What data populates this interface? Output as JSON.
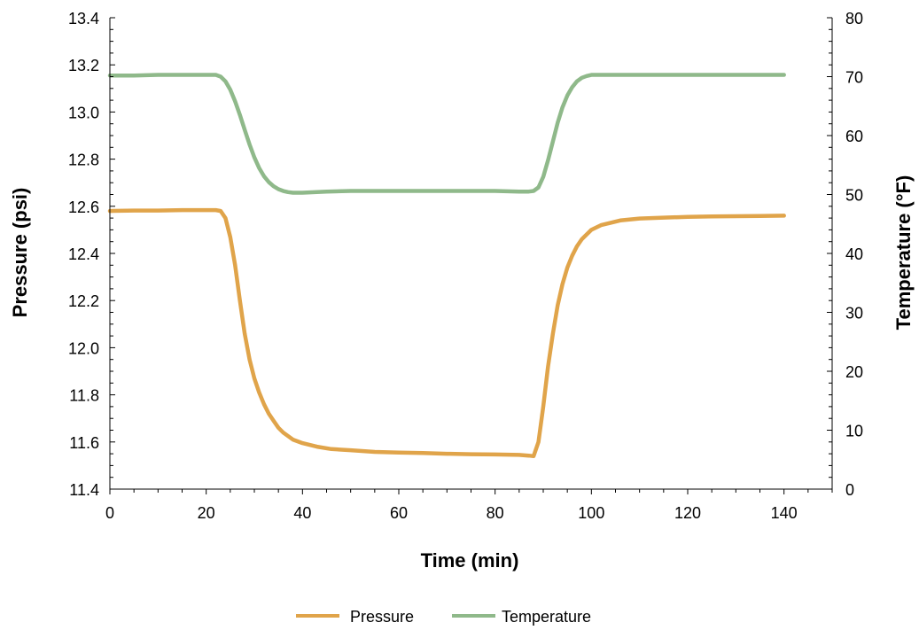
{
  "chart_data": {
    "type": "line",
    "xlabel": "Time (min)",
    "ylabel": "Pressure (psi)",
    "y2label": "Temperature (°F)",
    "xlim": [
      0,
      150
    ],
    "ylim": [
      11.4,
      13.4
    ],
    "y2lim": [
      0,
      80
    ],
    "x_ticks": [
      "0",
      "20",
      "40",
      "60",
      "80",
      "100",
      "120",
      "140"
    ],
    "y_ticks": [
      "11.4",
      "11.6",
      "11.8",
      "12.0",
      "12.2",
      "12.4",
      "12.6",
      "12.8",
      "13.0",
      "13.2",
      "13.4"
    ],
    "y2_ticks": [
      "0",
      "10",
      "20",
      "30",
      "40",
      "50",
      "60",
      "70",
      "80"
    ],
    "grid": false,
    "legend_position": "bottom",
    "series": [
      {
        "name": "Pressure",
        "axis": "left",
        "color": "#e0a44a",
        "x": [
          0,
          5,
          10,
          15,
          20,
          22,
          23,
          24,
          25,
          26,
          27,
          28,
          29,
          30,
          31,
          32,
          33,
          34,
          35,
          36,
          38,
          40,
          43,
          46,
          50,
          55,
          60,
          65,
          70,
          75,
          80,
          85,
          87,
          88,
          89,
          90,
          91,
          92,
          93,
          94,
          95,
          96,
          97,
          98,
          100,
          102,
          104,
          106,
          110,
          115,
          120,
          125,
          130,
          135,
          140
        ],
        "y": [
          12.58,
          12.582,
          12.582,
          12.584,
          12.584,
          12.584,
          12.58,
          12.55,
          12.47,
          12.35,
          12.2,
          12.06,
          11.95,
          11.87,
          11.81,
          11.76,
          11.72,
          11.69,
          11.66,
          11.64,
          11.61,
          11.595,
          11.58,
          11.57,
          11.565,
          11.558,
          11.555,
          11.553,
          11.55,
          11.548,
          11.547,
          11.545,
          11.542,
          11.54,
          11.6,
          11.75,
          11.92,
          12.06,
          12.18,
          12.27,
          12.34,
          12.39,
          12.43,
          12.46,
          12.5,
          12.52,
          12.53,
          12.54,
          12.548,
          12.552,
          12.555,
          12.557,
          12.558,
          12.559,
          12.56
        ]
      },
      {
        "name": "Temperature",
        "axis": "right",
        "color": "#8fb98a",
        "x": [
          0,
          5,
          10,
          15,
          20,
          22,
          23,
          24,
          25,
          26,
          27,
          28,
          29,
          30,
          31,
          32,
          33,
          34,
          35,
          36,
          37,
          38,
          40,
          45,
          50,
          55,
          60,
          65,
          70,
          75,
          80,
          85,
          87,
          88,
          89,
          90,
          91,
          92,
          93,
          94,
          95,
          96,
          97,
          98,
          99,
          100,
          102,
          105,
          110,
          120,
          130,
          140
        ],
        "y": [
          70.2,
          70.2,
          70.3,
          70.3,
          70.3,
          70.3,
          70.0,
          69.2,
          67.8,
          65.8,
          63.5,
          61.0,
          58.5,
          56.3,
          54.5,
          53.1,
          52.1,
          51.4,
          50.9,
          50.6,
          50.4,
          50.3,
          50.3,
          50.5,
          50.6,
          50.6,
          50.6,
          50.6,
          50.6,
          50.6,
          50.6,
          50.5,
          50.5,
          50.6,
          51.2,
          53.0,
          55.8,
          59.0,
          62.2,
          64.8,
          66.8,
          68.2,
          69.2,
          69.8,
          70.1,
          70.3,
          70.3,
          70.3,
          70.3,
          70.3,
          70.3,
          70.3
        ]
      }
    ]
  }
}
